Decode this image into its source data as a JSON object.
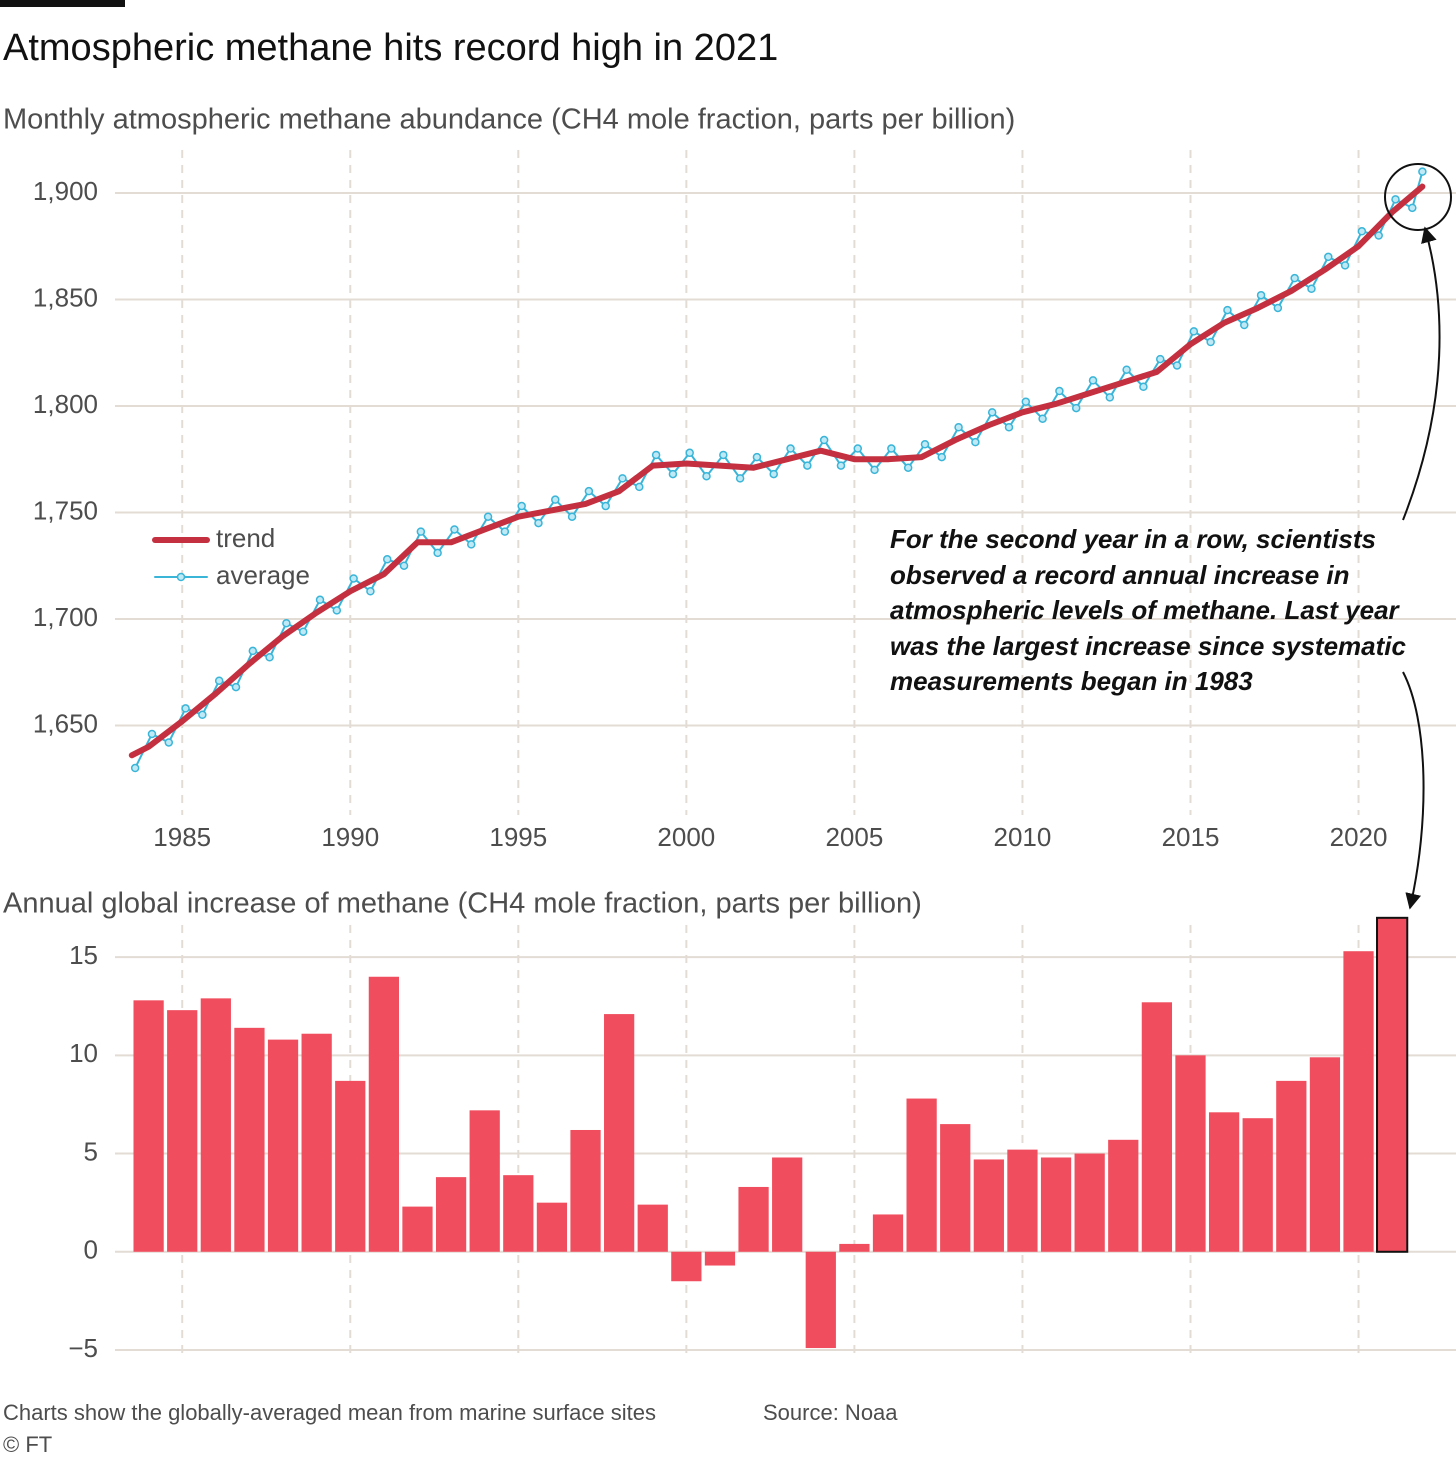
{
  "chart_data": [
    {
      "type": "line",
      "title": "Atmospheric methane hits record high in 2021",
      "subtitle": "Monthly atmospheric methane abundance (CH4 mole fraction, parts per billion)",
      "annotation": "For the second year in a row, scientists observed a record annual increase in atmospheric levels of methane. Last year was the largest increase since systematic measurements began in 1983",
      "xlim": [
        1983,
        2022.9
      ],
      "xticks": [
        1985,
        1990,
        1995,
        2000,
        2005,
        2010,
        2015,
        2020
      ],
      "ylim": [
        1615,
        1915
      ],
      "yticks": [
        {
          "value": 1650,
          "label": "1,650"
        },
        {
          "value": 1700,
          "label": "1,700"
        },
        {
          "value": 1750,
          "label": "1,750"
        },
        {
          "value": 1800,
          "label": "1,800"
        },
        {
          "value": 1850,
          "label": "1,850"
        },
        {
          "value": 1900,
          "label": "1,900"
        }
      ],
      "grid": true,
      "legend": "left",
      "series": [
        {
          "name": "trend",
          "color": "#c4303f",
          "x": [
            1983.5,
            1984,
            1985,
            1986,
            1987,
            1988,
            1989,
            1990,
            1991,
            1992,
            1993,
            1994,
            1995,
            1996,
            1997,
            1998,
            1999,
            2000,
            2001,
            2002,
            2003,
            2004,
            2005,
            2006,
            2007,
            2008,
            2009,
            2010,
            2011,
            2012,
            2013,
            2014,
            2015,
            2016,
            2017,
            2018,
            2019,
            2020,
            2021,
            2021.9
          ],
          "values": [
            1636,
            1640,
            1652,
            1665,
            1679,
            1692,
            1703,
            1713,
            1721,
            1736,
            1736,
            1742,
            1748,
            1751,
            1754,
            1760,
            1772,
            1773,
            1772,
            1771,
            1775,
            1779,
            1775,
            1775,
            1776,
            1784,
            1791,
            1797,
            1801,
            1806,
            1811,
            1816,
            1829,
            1839,
            1846,
            1854,
            1864,
            1875,
            1891,
            1903
          ]
        },
        {
          "name": "average",
          "color": "#3ab5d8",
          "markers": true,
          "x": [
            1983.6,
            1984.1,
            1984.6,
            1985.1,
            1985.6,
            1986.1,
            1986.6,
            1987.1,
            1987.6,
            1988.1,
            1988.6,
            1989.1,
            1989.6,
            1990.1,
            1990.6,
            1991.1,
            1991.6,
            1992.1,
            1992.6,
            1993.1,
            1993.6,
            1994.1,
            1994.6,
            1995.1,
            1995.6,
            1996.1,
            1996.6,
            1997.1,
            1997.6,
            1998.1,
            1998.6,
            1999.1,
            1999.6,
            2000.1,
            2000.6,
            2001.1,
            2001.6,
            2002.1,
            2002.6,
            2003.1,
            2003.6,
            2004.1,
            2004.6,
            2005.1,
            2005.6,
            2006.1,
            2006.6,
            2007.1,
            2007.6,
            2008.1,
            2008.6,
            2009.1,
            2009.6,
            2010.1,
            2010.6,
            2011.1,
            2011.6,
            2012.1,
            2012.6,
            2013.1,
            2013.6,
            2014.1,
            2014.6,
            2015.1,
            2015.6,
            2016.1,
            2016.6,
            2017.1,
            2017.6,
            2018.1,
            2018.6,
            2019.1,
            2019.6,
            2020.1,
            2020.6,
            2021.1,
            2021.6,
            2021.9
          ],
          "values": [
            1630,
            1646,
            1642,
            1658,
            1655,
            1671,
            1668,
            1685,
            1682,
            1698,
            1694,
            1709,
            1704,
            1719,
            1713,
            1728,
            1725,
            1741,
            1731,
            1742,
            1735,
            1748,
            1741,
            1753,
            1745,
            1756,
            1748,
            1760,
            1753,
            1766,
            1762,
            1777,
            1768,
            1778,
            1767,
            1777,
            1766,
            1776,
            1768,
            1780,
            1772,
            1784,
            1772,
            1780,
            1770,
            1780,
            1771,
            1782,
            1776,
            1790,
            1783,
            1797,
            1790,
            1802,
            1794,
            1807,
            1799,
            1812,
            1804,
            1817,
            1809,
            1822,
            1819,
            1835,
            1830,
            1845,
            1838,
            1852,
            1846,
            1860,
            1855,
            1870,
            1866,
            1882,
            1880,
            1897,
            1893,
            1910
          ]
        }
      ]
    },
    {
      "type": "bar",
      "title": "Annual global increase of methane (CH4 mole fraction, parts per billion)",
      "xlim": [
        1983,
        2022.9
      ],
      "xticks": [
        1985,
        1990,
        1995,
        2000,
        2005,
        2010,
        2015,
        2020
      ],
      "ylim": [
        -5,
        17.5
      ],
      "yticks": [
        {
          "value": -5,
          "label": "−5"
        },
        0,
        5,
        10,
        15
      ],
      "grid": true,
      "color": "#f04e5e",
      "highlight_last": true,
      "x": [
        1984,
        1985,
        1986,
        1987,
        1988,
        1989,
        1990,
        1991,
        1992,
        1993,
        1994,
        1995,
        1996,
        1997,
        1998,
        1999,
        2000,
        2001,
        2002,
        2003,
        2004,
        2005,
        2006,
        2007,
        2008,
        2009,
        2010,
        2011,
        2012,
        2013,
        2014,
        2015,
        2016,
        2017,
        2018,
        2019,
        2020,
        2021
      ],
      "values": [
        12.8,
        12.3,
        12.9,
        11.4,
        10.8,
        11.1,
        8.7,
        14.0,
        2.3,
        3.8,
        7.2,
        3.9,
        2.5,
        6.2,
        12.1,
        2.4,
        -1.5,
        -0.7,
        3.3,
        4.8,
        -4.9,
        0.4,
        1.9,
        7.8,
        6.5,
        4.7,
        5.2,
        4.8,
        5.0,
        5.7,
        12.7,
        10.0,
        7.1,
        6.8,
        8.7,
        9.9,
        15.3,
        17.0
      ]
    }
  ],
  "footer": {
    "note": "Charts show the globally-averaged mean from marine surface sites",
    "source": "Source: Noaa",
    "copyright": "© FT"
  }
}
